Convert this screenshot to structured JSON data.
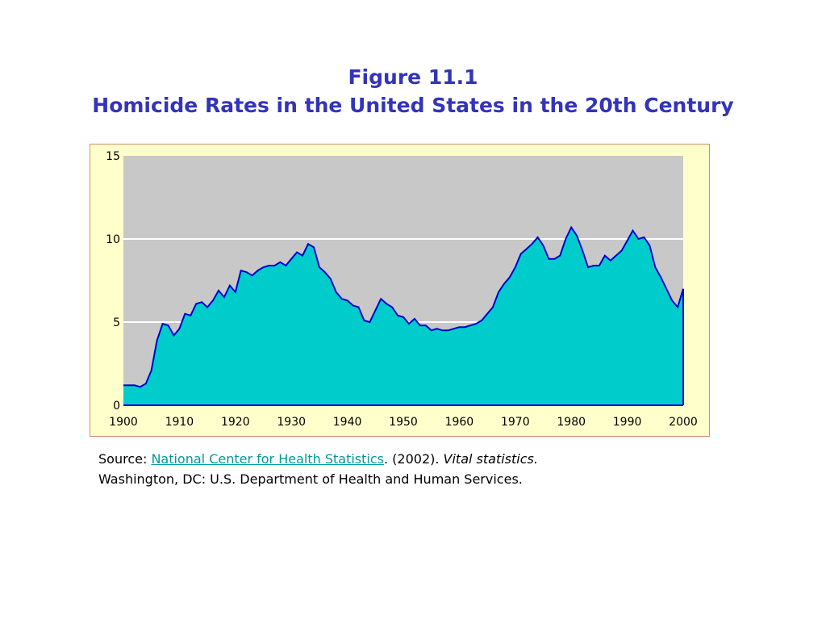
{
  "title": {
    "line1": "Figure 11.1",
    "line2": "Homicide Rates in the United States in the 20th Century"
  },
  "source": {
    "prefix": "Source: ",
    "link_text": "National Center for Health Statistics",
    "after_link": ". (2002). ",
    "italic": "Vital statistics.",
    "line2": "Washington, DC: U.S. Department of Health and Human Services."
  },
  "colors": {
    "title": "#3333bb",
    "frame_background": "#ffffcc",
    "plot_background": "#c8c8c8",
    "area_fill": "#00cccc",
    "area_line": "#0000cc",
    "gridline": "#ffffff",
    "link": "#009999"
  },
  "chart_data": {
    "type": "area",
    "title": "",
    "xlabel": "",
    "ylabel": "",
    "xlim": [
      1900,
      2000
    ],
    "ylim": [
      0,
      15
    ],
    "x_ticks": [
      1900,
      1910,
      1920,
      1930,
      1940,
      1950,
      1960,
      1970,
      1980,
      1990,
      2000
    ],
    "y_ticks": [
      0,
      5,
      10,
      15
    ],
    "grid": true,
    "series": [
      {
        "x": [
          1900,
          1901,
          1902,
          1903,
          1904,
          1905,
          1906,
          1907,
          1908,
          1909,
          1910,
          1911,
          1912,
          1913,
          1914,
          1915,
          1916,
          1917,
          1918,
          1919,
          1920,
          1921,
          1922,
          1923,
          1924,
          1925,
          1926,
          1927,
          1928,
          1929,
          1930,
          1931,
          1932,
          1933,
          1934,
          1935,
          1936,
          1937,
          1938,
          1939,
          1940,
          1941,
          1942,
          1943,
          1944,
          1945,
          1946,
          1947,
          1948,
          1949,
          1950,
          1951,
          1952,
          1953,
          1954,
          1955,
          1956,
          1957,
          1958,
          1959,
          1960,
          1961,
          1962,
          1963,
          1964,
          1965,
          1966,
          1967,
          1968,
          1969,
          1970,
          1971,
          1972,
          1973,
          1974,
          1975,
          1976,
          1977,
          1978,
          1979,
          1980,
          1981,
          1982,
          1983,
          1984,
          1985,
          1986,
          1987,
          1988,
          1989,
          1990,
          1991,
          1992,
          1993,
          1994,
          1995,
          1996,
          1997,
          1998,
          1999,
          2000
        ],
        "values": [
          1.2,
          1.2,
          1.2,
          1.1,
          1.3,
          2.1,
          3.9,
          4.9,
          4.8,
          4.2,
          4.6,
          5.5,
          5.4,
          6.1,
          6.2,
          5.9,
          6.3,
          6.9,
          6.5,
          7.2,
          6.8,
          8.1,
          8.0,
          7.8,
          8.1,
          8.3,
          8.4,
          8.4,
          8.6,
          8.4,
          8.8,
          9.2,
          9.0,
          9.7,
          9.5,
          8.3,
          8.0,
          7.6,
          6.8,
          6.4,
          6.3,
          6.0,
          5.9,
          5.1,
          5.0,
          5.7,
          6.4,
          6.1,
          5.9,
          5.4,
          5.3,
          4.9,
          5.2,
          4.8,
          4.8,
          4.5,
          4.6,
          4.5,
          4.5,
          4.6,
          4.7,
          4.7,
          4.8,
          4.9,
          5.1,
          5.5,
          5.9,
          6.8,
          7.3,
          7.7,
          8.3,
          9.1,
          9.4,
          9.7,
          10.1,
          9.6,
          8.8,
          8.8,
          9.0,
          10.0,
          10.7,
          10.2,
          9.3,
          8.3,
          8.4,
          8.4,
          9.0,
          8.7,
          9.0,
          9.3,
          9.9,
          10.5,
          10.0,
          10.1,
          9.6,
          8.3,
          7.7,
          7.0,
          6.3,
          5.9,
          7.0
        ]
      }
    ]
  }
}
